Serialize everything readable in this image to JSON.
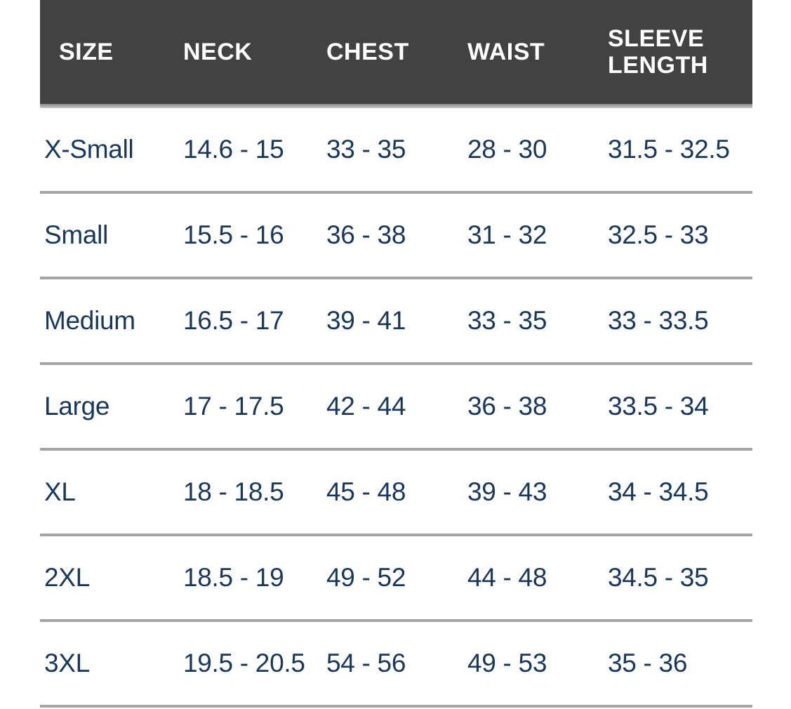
{
  "chart_data": {
    "type": "table",
    "title": "",
    "columns": [
      "SIZE",
      "NECK",
      "CHEST",
      "WAIST",
      "SLEEVE LENGTH"
    ],
    "rows": [
      [
        "X-Small",
        "14.6 - 15",
        "33 - 35",
        "28 - 30",
        "31.5 - 32.5"
      ],
      [
        "Small",
        "15.5 - 16",
        "36 - 38",
        "31 - 32",
        "32.5 - 33"
      ],
      [
        "Medium",
        "16.5 - 17",
        "39 - 41",
        "33 - 35",
        "33 - 33.5"
      ],
      [
        "Large",
        "17 - 17.5",
        "42 - 44",
        "36 - 38",
        "33.5 - 34"
      ],
      [
        "XL",
        "18 - 18.5",
        "45 - 48",
        "39 - 43",
        "34 - 34.5"
      ],
      [
        "2XL",
        "18.5 - 19",
        "49 - 52",
        "44 - 48",
        "34.5 - 35"
      ],
      [
        "3XL",
        "19.5 - 20.5",
        "54 - 56",
        "49 - 53",
        "35 - 36"
      ]
    ],
    "layout": {
      "grid": "horizontal row separators only, no vertical lines",
      "header_position": "top"
    }
  },
  "colors": {
    "header_background": "#424242",
    "header_text": "#ffffff",
    "body_text": "#17375e",
    "row_divider": "#a4a4a4",
    "page_background": "#ffffff"
  }
}
